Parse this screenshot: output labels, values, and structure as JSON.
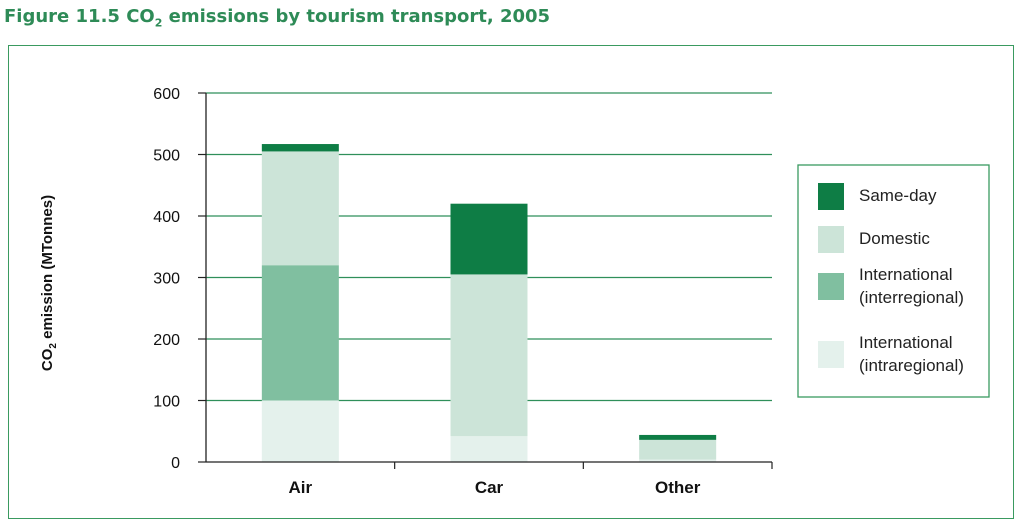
{
  "title_prefix": "Figure 11.5  CO",
  "title_sub": "2",
  "title_suffix": " emissions by tourism transport, 2005",
  "chart_data": {
    "type": "bar",
    "stacked": true,
    "categories": [
      "Air",
      "Car",
      "Other"
    ],
    "ylabel_prefix": "CO",
    "ylabel_sub": "2",
    "ylabel_suffix": " emission (MTonnes)",
    "ylim": [
      0,
      600
    ],
    "yticks": [
      0,
      100,
      200,
      300,
      400,
      500,
      600
    ],
    "grid": true,
    "legend_position": "right",
    "series": [
      {
        "name": "International (intraregional)",
        "legend_lines": [
          "International",
          "(intraregional)"
        ],
        "color": "#e4f1ec",
        "values": [
          100,
          42,
          4
        ]
      },
      {
        "name": "International (interregional)",
        "legend_lines": [
          "International",
          "(interregional)"
        ],
        "color": "#80bfa0",
        "values": [
          220,
          0,
          0
        ]
      },
      {
        "name": "Domestic",
        "legend_lines": [
          "Domestic"
        ],
        "color": "#cce4d8",
        "values": [
          185,
          263,
          32
        ]
      },
      {
        "name": "Same-day",
        "legend_lines": [
          "Same-day"
        ],
        "color": "#0e7d45",
        "values": [
          12,
          115,
          8
        ]
      }
    ],
    "legend_order": [
      3,
      2,
      1,
      0
    ]
  }
}
